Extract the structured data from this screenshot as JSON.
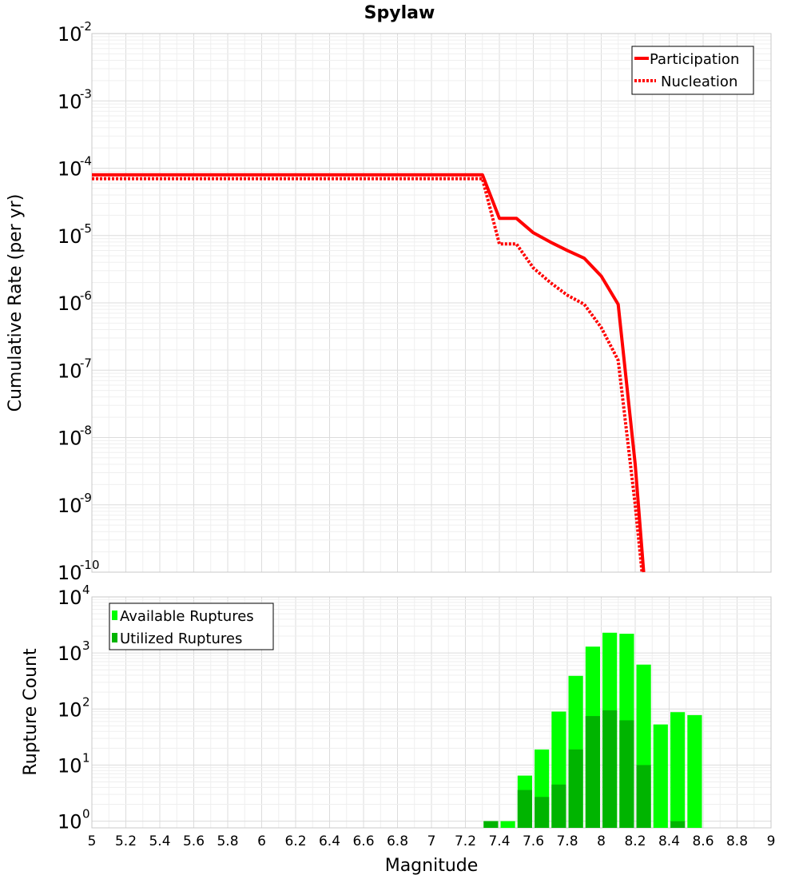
{
  "chart_data": [
    {
      "type": "line",
      "title": "Spylaw",
      "xlabel": "Magnitude",
      "ylabel": "Cumulative Rate (per yr)",
      "yscale": "log",
      "ylim_exponents": [
        -10,
        -2
      ],
      "xlim": [
        5,
        9
      ],
      "legend_position": "top-right",
      "series": [
        {
          "name": "Participation",
          "style": "solid",
          "color": "#ff0000",
          "x": [
            5.0,
            7.3,
            7.4,
            7.5,
            7.6,
            7.7,
            7.8,
            7.9,
            8.0,
            8.1,
            8.2,
            8.25
          ],
          "y": [
            8e-05,
            8e-05,
            1.8e-05,
            1.8e-05,
            1.1e-05,
            8e-06,
            6e-06,
            4.6e-06,
            2.5e-06,
            9.5e-07,
            4e-09,
            1e-10
          ]
        },
        {
          "name": "Nucleation",
          "style": "dotted",
          "color": "#ff0000",
          "x": [
            5.0,
            7.3,
            7.4,
            7.5,
            7.6,
            7.7,
            7.8,
            7.9,
            8.0,
            8.1,
            8.2,
            8.24
          ],
          "y": [
            7e-05,
            7e-05,
            7.5e-06,
            7.5e-06,
            3.3e-06,
            2e-06,
            1.3e-06,
            9.5e-07,
            4.3e-07,
            1.4e-07,
            1e-09,
            1e-10
          ]
        }
      ]
    },
    {
      "type": "bar",
      "xlabel": "Magnitude",
      "ylabel": "Rupture Count",
      "yscale": "log",
      "ylim_exponents": [
        0,
        4
      ],
      "xlim": [
        5,
        9
      ],
      "legend_position": "top-left",
      "x_ticks": [
        "5",
        "5.2",
        "5.4",
        "5.6",
        "5.8",
        "6",
        "6.2",
        "6.4",
        "6.6",
        "6.8",
        "7",
        "7.2",
        "7.4",
        "7.6",
        "7.8",
        "8",
        "8.2",
        "8.4",
        "8.6",
        "8.8",
        "9"
      ],
      "series": [
        {
          "name": "Available Ruptures",
          "color": "#00ff00",
          "x": [
            7.35,
            7.45,
            7.55,
            7.65,
            7.75,
            7.85,
            7.95,
            8.05,
            8.15,
            8.25,
            8.35,
            8.45,
            8.55
          ],
          "values": [
            1,
            1,
            6.5,
            19,
            90,
            390,
            1300,
            2300,
            2200,
            620,
            53,
            88,
            78
          ]
        },
        {
          "name": "Utilized Ruptures",
          "color": "#00b400",
          "x": [
            7.35,
            7.45,
            7.55,
            7.65,
            7.75,
            7.85,
            7.95,
            8.05,
            8.15,
            8.25,
            8.35,
            8.45,
            8.55
          ],
          "values": [
            1,
            0,
            3.6,
            2.7,
            4.5,
            19,
            75,
            95,
            63,
            10,
            0,
            1,
            0
          ]
        }
      ]
    }
  ]
}
